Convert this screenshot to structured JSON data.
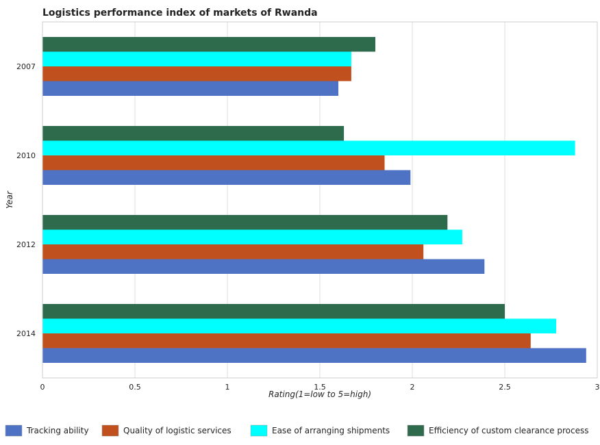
{
  "chart_data": {
    "type": "bar",
    "orientation": "horizontal",
    "title": "Logistics performance index of markets of Rwanda",
    "xlabel": "Rating(1=low to 5=high)",
    "ylabel": "Year",
    "xlim": [
      0,
      3.0
    ],
    "xticks": [
      "0",
      "0.5",
      "1",
      "1.5",
      "2",
      "2.5",
      "3"
    ],
    "xtick_values": [
      0,
      0.5,
      1,
      1.5,
      2,
      2.5,
      3
    ],
    "categories": [
      "2007",
      "2010",
      "2012",
      "2014"
    ],
    "series": [
      {
        "name": "Tracking ability",
        "color": "#4f73c4",
        "values": [
          1.6,
          1.99,
          2.39,
          2.94
        ]
      },
      {
        "name": "Quality of logistic services",
        "color": "#c0501e",
        "values": [
          1.67,
          1.85,
          2.06,
          2.64
        ]
      },
      {
        "name": "Ease of arranging shipments",
        "color": "#00ffff",
        "values": [
          1.67,
          2.88,
          2.27,
          2.7778
        ]
      },
      {
        "name": "Efficiency of custom clearance process",
        "color": "#2e6b4c",
        "values": [
          1.8,
          1.63,
          2.19,
          2.5
        ]
      }
    ],
    "grid": true,
    "legend_position": "bottom"
  }
}
